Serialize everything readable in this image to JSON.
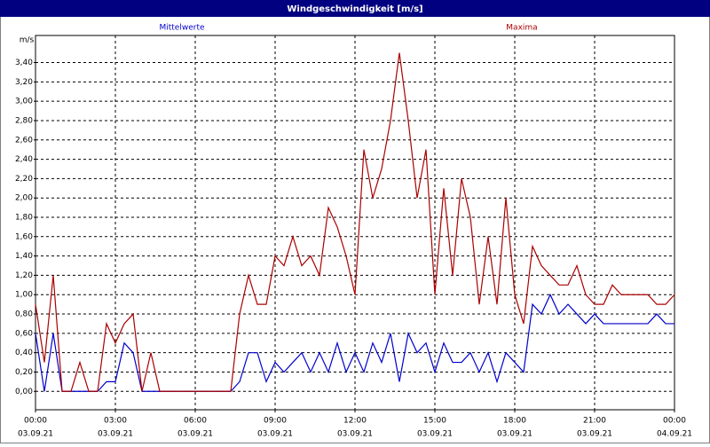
{
  "chart_data": {
    "type": "line",
    "title": "Windgeschwindigkeit [m/s]",
    "y_label": "m/s",
    "x": [
      0,
      20,
      40,
      60,
      80,
      100,
      120,
      140,
      160,
      180,
      200,
      220,
      240,
      260,
      280,
      300,
      320,
      340,
      360,
      380,
      400,
      420,
      440,
      460,
      480,
      500,
      520,
      540,
      560,
      580,
      600,
      620,
      640,
      660,
      680,
      700,
      720,
      740,
      760,
      780,
      800,
      820,
      840,
      860,
      880,
      900,
      920,
      940,
      960,
      980,
      1000,
      1020,
      1040,
      1060,
      1080,
      1100,
      1120,
      1140,
      1160,
      1180,
      1200,
      1220,
      1240,
      1260,
      1280,
      1300,
      1320,
      1340,
      1360,
      1380,
      1400,
      1420,
      1440
    ],
    "series": [
      {
        "name": "Mittelwerte",
        "color": "#0000cc",
        "values": [
          0.6,
          0,
          0.6,
          0,
          0,
          0,
          0,
          0,
          0.1,
          0.1,
          0.5,
          0.4,
          0,
          0,
          0,
          0,
          0,
          0,
          0,
          0,
          0,
          0,
          0,
          0.1,
          0.4,
          0.4,
          0.1,
          0.3,
          0.2,
          0.3,
          0.4,
          0.2,
          0.4,
          0.2,
          0.5,
          0.2,
          0.4,
          0.2,
          0.5,
          0.3,
          0.6,
          0.1,
          0.6,
          0.4,
          0.5,
          0.2,
          0.5,
          0.3,
          0.3,
          0.4,
          0.2,
          0.4,
          0.1,
          0.4,
          0.3,
          0.2,
          0.9,
          0.8,
          1.0,
          0.8,
          0.9,
          0.8,
          0.7,
          0.8,
          0.7,
          0.7,
          0.7,
          0.7,
          0.7,
          0.7,
          0.8,
          0.7,
          0.7
        ]
      },
      {
        "name": "Maxima",
        "color": "#aa0000",
        "values": [
          0.9,
          0.3,
          1.2,
          0,
          0,
          0.3,
          0,
          0,
          0.7,
          0.5,
          0.7,
          0.8,
          0,
          0.4,
          0,
          0,
          0,
          0,
          0,
          0,
          0,
          0,
          0,
          0.8,
          1.2,
          0.9,
          0.9,
          1.4,
          1.3,
          1.6,
          1.3,
          1.4,
          1.2,
          1.9,
          1.7,
          1.4,
          1.0,
          2.5,
          2.0,
          2.3,
          2.8,
          3.5,
          2.8,
          2.0,
          2.5,
          1.0,
          2.1,
          1.2,
          2.2,
          1.8,
          0.9,
          1.6,
          0.9,
          2.0,
          1.0,
          0.7,
          1.5,
          1.3,
          1.2,
          1.1,
          1.1,
          1.3,
          1.0,
          0.9,
          0.9,
          1.1,
          1.0,
          1.0,
          1.0,
          1.0,
          0.9,
          0.9,
          1.0
        ]
      }
    ],
    "xlim": [
      0,
      1440
    ],
    "xticks": [
      {
        "value": 0,
        "label": "00:00"
      },
      {
        "value": 180,
        "label": "03:00"
      },
      {
        "value": 360,
        "label": "06:00"
      },
      {
        "value": 540,
        "label": "09:00"
      },
      {
        "value": 720,
        "label": "12:00"
      },
      {
        "value": 900,
        "label": "15:00"
      },
      {
        "value": 1080,
        "label": "18:00"
      },
      {
        "value": 1260,
        "label": "21:00"
      },
      {
        "value": 1440,
        "label": "00:00"
      }
    ],
    "xtick_dates": [
      "03.09.21",
      "03.09.21",
      "03.09.21",
      "03.09.21",
      "03.09.21",
      "03.09.21",
      "03.09.21",
      "03.09.21",
      "04.09.21"
    ],
    "ylim": [
      -0.19,
      3.68
    ],
    "yticks": [
      {
        "value": 0,
        "label": "0,00"
      },
      {
        "value": 0.2,
        "label": "0,20"
      },
      {
        "value": 0.4,
        "label": "0,40"
      },
      {
        "value": 0.6,
        "label": "0,60"
      },
      {
        "value": 0.8,
        "label": "0,80"
      },
      {
        "value": 1.0,
        "label": "1,00"
      },
      {
        "value": 1.2,
        "label": "1,20"
      },
      {
        "value": 1.4,
        "label": "1,40"
      },
      {
        "value": 1.6,
        "label": "1,60"
      },
      {
        "value": 1.8,
        "label": "1,80"
      },
      {
        "value": 2.0,
        "label": "2,00"
      },
      {
        "value": 2.2,
        "label": "2,20"
      },
      {
        "value": 2.4,
        "label": "2,40"
      },
      {
        "value": 2.6,
        "label": "2,60"
      },
      {
        "value": 2.8,
        "label": "2,80"
      },
      {
        "value": 3.0,
        "label": "3,00"
      },
      {
        "value": 3.2,
        "label": "3,20"
      },
      {
        "value": 3.4,
        "label": "3,40"
      }
    ],
    "grid": true
  }
}
